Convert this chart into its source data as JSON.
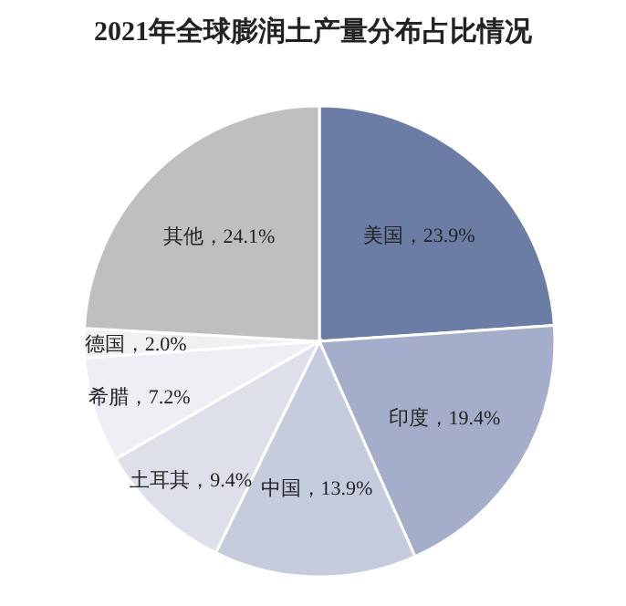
{
  "chart_data": {
    "type": "pie",
    "title": "2021年全球膨润土产量分布占比情况",
    "categories": [
      "美国",
      "印度",
      "中国",
      "土耳其",
      "希腊",
      "德国",
      "其他"
    ],
    "values": [
      23.9,
      19.4,
      13.9,
      9.4,
      7.2,
      2.0,
      24.1
    ],
    "colors": [
      "#6b7ca5",
      "#a4aecb",
      "#c6cbdd",
      "#dde0eb",
      "#eeeff4",
      "#f0f0f0",
      "#bfbfbf"
    ],
    "value_labels": [
      "，23.9%",
      "，19.4%",
      "，13.9%",
      "，9.4%",
      "，7.2%",
      "，2.0%",
      "，24.1%"
    ]
  }
}
